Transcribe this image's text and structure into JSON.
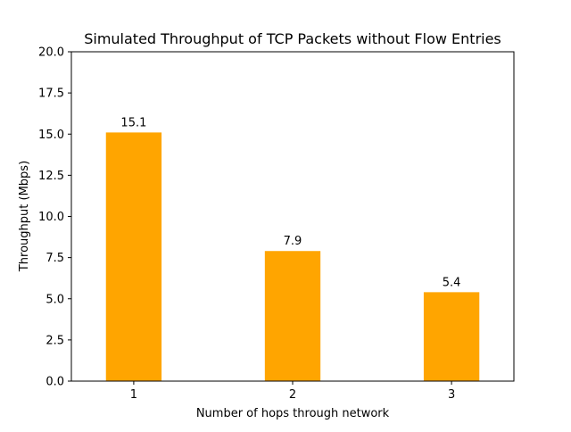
{
  "chart_data": {
    "type": "bar",
    "title": "Simulated Throughput of TCP Packets without Flow Entries",
    "xlabel": "Number of hops through network",
    "ylabel": "Throughput (Mbps)",
    "categories": [
      "1",
      "2",
      "3"
    ],
    "values": [
      15.1,
      7.9,
      5.4
    ],
    "data_labels": [
      "15.1",
      "7.9",
      "5.4"
    ],
    "ylim": [
      0,
      20
    ],
    "yticks": [
      0,
      2.5,
      5,
      7.5,
      10,
      12.5,
      15,
      17.5,
      20
    ],
    "ytick_labels": [
      "0.0",
      "2.5",
      "5.0",
      "7.5",
      "10.0",
      "12.5",
      "15.0",
      "17.5",
      "20.0"
    ],
    "bar_color": "#ffa500",
    "grid": false,
    "legend": "none"
  }
}
